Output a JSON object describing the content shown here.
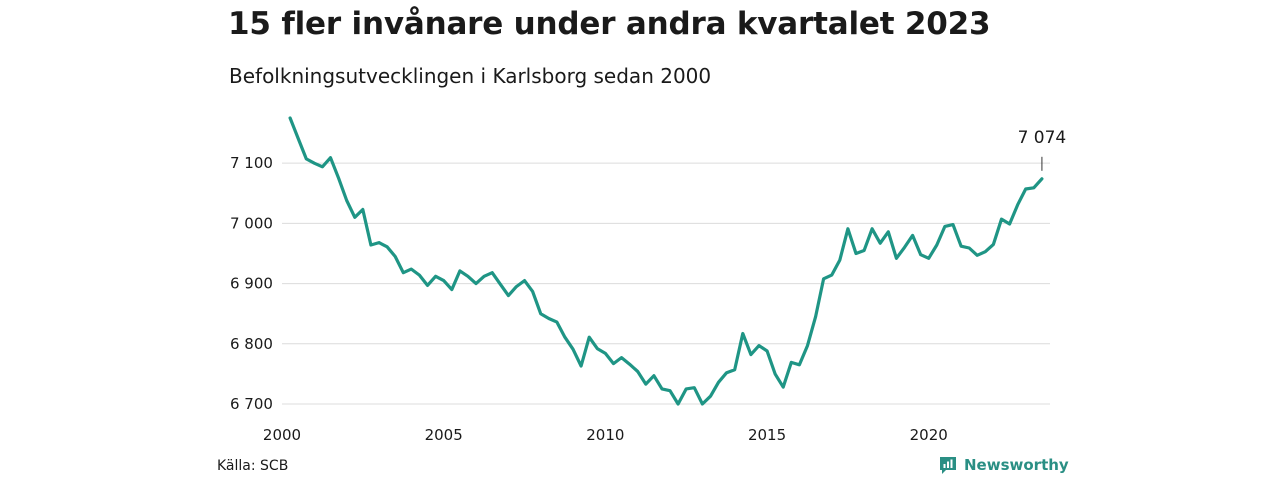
{
  "header": {
    "title": "15 fler invånare under andra kvartalet 2023",
    "subtitle": "Befolkningsutvecklingen i Karlsborg sedan 2000"
  },
  "footer": {
    "source": "Källa: SCB",
    "brand": "Newsworthy"
  },
  "colors": {
    "line": "#1f9585",
    "grid": "#dcdcdc",
    "brand": "#2a8f84"
  },
  "chart_data": {
    "type": "line",
    "grid": true,
    "legend": "none",
    "xlim": [
      2000.0,
      2023.75
    ],
    "ylim": [
      6690,
      7175
    ],
    "x_ticks": [
      {
        "value": 2000,
        "label": "2000"
      },
      {
        "value": 2005,
        "label": "2005"
      },
      {
        "value": 2010,
        "label": "2010"
      },
      {
        "value": 2015,
        "label": "2015"
      },
      {
        "value": 2020,
        "label": "2020"
      }
    ],
    "y_ticks": [
      {
        "value": 6700,
        "label": "6 700"
      },
      {
        "value": 6800,
        "label": "6 800"
      },
      {
        "value": 6900,
        "label": "6 900"
      },
      {
        "value": 7000,
        "label": "7 000"
      },
      {
        "value": 7100,
        "label": "7 100"
      }
    ],
    "annotation": {
      "label": "7 074",
      "value": 7074
    },
    "x_start": 2000.25,
    "x_step": 0.25,
    "values": [
      7175,
      7141,
      7107,
      7100,
      7094,
      7109,
      7075,
      7038,
      7010,
      7023,
      6964,
      6968,
      6961,
      6945,
      6918,
      6924,
      6914,
      6897,
      6912,
      6905,
      6890,
      6921,
      6912,
      6900,
      6912,
      6918,
      6899,
      6880,
      6895,
      6905,
      6887,
      6850,
      6842,
      6836,
      6811,
      6791,
      6763,
      6811,
      6792,
      6784,
      6767,
      6777,
      6766,
      6754,
      6733,
      6747,
      6725,
      6722,
      6700,
      6725,
      6727,
      6700,
      6713,
      6736,
      6752,
      6757,
      6817,
      6782,
      6797,
      6788,
      6750,
      6728,
      6769,
      6765,
      6797,
      6845,
      6908,
      6914,
      6939,
      6991,
      6950,
      6955,
      6991,
      6967,
      6986,
      6942,
      6960,
      6980,
      6948,
      6942,
      6964,
      6995,
      6998,
      6962,
      6959,
      6947,
      6953,
      6965,
      7007,
      6999,
      7031,
      7057,
      7059,
      7074
    ]
  }
}
